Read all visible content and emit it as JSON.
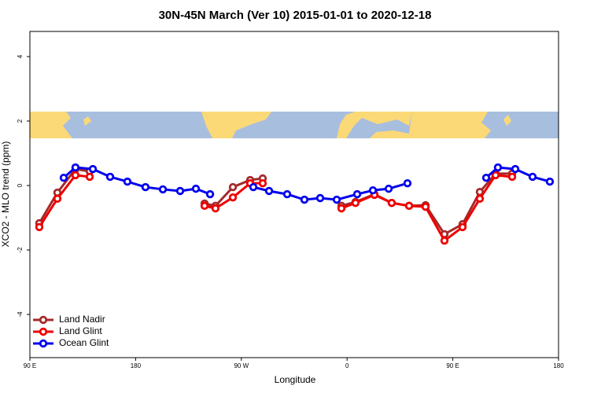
{
  "chart_data": {
    "type": "line",
    "title": "30N-45N March (Ver 10)   2015-01-01 to 2020-12-18",
    "x_label": "Longitude",
    "y_label": "XCO2 - MLO trend (ppm)",
    "xlim": [
      90,
      540
    ],
    "ylim": [
      -5.34,
      4.78
    ],
    "xticks": [
      {
        "value": 90,
        "label": "90 E"
      },
      {
        "value": 180,
        "label": "180"
      },
      {
        "value": 270,
        "label": "90 W"
      },
      {
        "value": 360,
        "label": "0"
      },
      {
        "value": 450,
        "label": "90 E"
      },
      {
        "value": 540,
        "label": "180"
      }
    ],
    "yticks": [
      4,
      2,
      0,
      -2,
      -4
    ],
    "legend": "bottom-left",
    "series": [
      {
        "name": "Land Nadir",
        "color": "#a52a2a",
        "x": [
          98.0,
          113.4,
          128.8,
          140.9,
          null,
          238.7,
          248.0,
          262.8,
          277.5,
          288.2,
          null,
          355.2,
          367.2,
          383.3,
          398.0,
          412.8,
          426.8,
          442.9,
          458.3,
          473.0,
          486.4,
          500.5
        ],
        "values": [
          -1.17,
          -0.22,
          0.51,
          0.44,
          null,
          -0.56,
          -0.63,
          -0.05,
          0.17,
          0.22,
          null,
          -0.63,
          -0.51,
          -0.27,
          -0.54,
          -0.63,
          -0.61,
          -1.51,
          -1.2,
          -0.2,
          0.37,
          0.37
        ]
      },
      {
        "name": "Land Glint",
        "color": "#ee0000",
        "x": [
          98.0,
          113.4,
          128.8,
          140.9,
          null,
          238.7,
          248.0,
          262.8,
          277.5,
          288.2,
          null,
          355.2,
          367.2,
          383.3,
          398.0,
          412.8,
          426.8,
          442.9,
          458.3,
          473.0,
          486.4,
          500.5
        ],
        "values": [
          -1.29,
          -0.41,
          0.32,
          0.27,
          null,
          -0.63,
          -0.71,
          -0.37,
          0.07,
          0.07,
          null,
          -0.71,
          -0.54,
          -0.29,
          -0.54,
          -0.63,
          -0.66,
          -1.71,
          -1.29,
          -0.41,
          0.32,
          0.27
        ]
      },
      {
        "name": "Ocean Glint",
        "color": "#0000ee",
        "x": [
          118.8,
          128.8,
          143.6,
          158.3,
          173.0,
          188.4,
          203.2,
          217.9,
          231.3,
          243.4,
          null,
          280.2,
          293.6,
          309.0,
          323.7,
          337.1,
          351.2,
          368.6,
          382.0,
          395.4,
          411.4,
          null,
          478.4,
          488.4,
          503.2,
          517.9,
          532.6
        ],
        "values": [
          0.24,
          0.56,
          0.51,
          0.27,
          0.12,
          -0.05,
          -0.12,
          -0.17,
          -0.1,
          -0.27,
          null,
          -0.05,
          -0.17,
          -0.27,
          -0.44,
          -0.39,
          -0.44,
          -0.27,
          -0.15,
          -0.1,
          0.07,
          null,
          0.24,
          0.56,
          0.51,
          0.27,
          0.12
        ]
      }
    ]
  }
}
